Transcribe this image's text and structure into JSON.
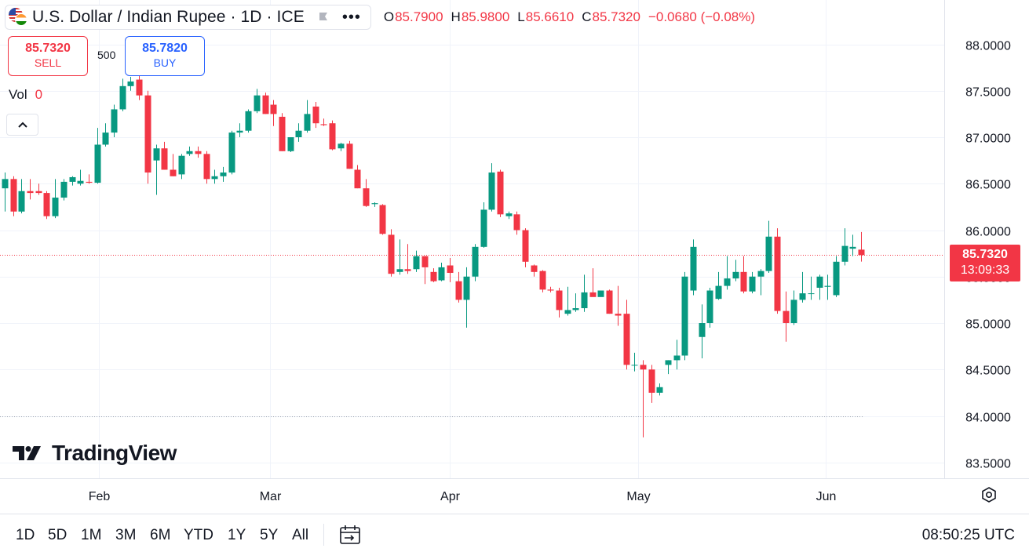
{
  "header": {
    "symbol_title": "U.S. Dollar / Indian Rupee · 1D · ICE",
    "more_icon": "more-dots-icon",
    "ohlc": [
      {
        "key": "O",
        "value": "85.7900"
      },
      {
        "key": "H",
        "value": "85.9800"
      },
      {
        "key": "L",
        "value": "85.6610"
      },
      {
        "key": "C",
        "value": "85.7320"
      }
    ],
    "change": "−0.0680 (−0.08%)"
  },
  "trade": {
    "sell_price": "85.7320",
    "sell_label": "SELL",
    "quantity": "500",
    "buy_price": "85.7820",
    "buy_label": "BUY"
  },
  "volume": {
    "label": "Vol",
    "value": "0"
  },
  "logo": {
    "text": "TradingView"
  },
  "price_badge": {
    "price": "85.7320",
    "countdown": "13:09:33"
  },
  "bottom": {
    "ranges": [
      "1D",
      "5D",
      "1M",
      "3M",
      "6M",
      "YTD",
      "1Y",
      "5Y",
      "All"
    ],
    "clock": "08:50:25 UTC"
  },
  "colors": {
    "up": "#089981",
    "down": "#f23645",
    "accent": "#2962ff"
  },
  "chart_data": {
    "type": "candlestick",
    "y_ticks": [
      "88.0000",
      "87.5000",
      "87.0000",
      "86.5000",
      "86.0000",
      "85.5000",
      "85.0000",
      "84.5000",
      "84.0000",
      "83.5000"
    ],
    "x_ticks": [
      "Feb",
      "Mar",
      "Apr",
      "May",
      "Jun"
    ],
    "ylim": [
      83.3,
      88.25
    ],
    "last_price": 85.732,
    "grid": true,
    "candles": [
      {
        "o": 86.45,
        "h": 86.62,
        "l": 86.2,
        "c": 86.55
      },
      {
        "o": 86.55,
        "h": 86.58,
        "l": 86.15,
        "c": 86.2
      },
      {
        "o": 86.2,
        "h": 86.55,
        "l": 86.18,
        "c": 86.42
      },
      {
        "o": 86.42,
        "h": 86.55,
        "l": 86.33,
        "c": 86.4
      },
      {
        "o": 86.42,
        "h": 86.5,
        "l": 86.38,
        "c": 86.4
      },
      {
        "o": 86.4,
        "h": 86.42,
        "l": 86.12,
        "c": 86.15
      },
      {
        "o": 86.15,
        "h": 86.55,
        "l": 86.13,
        "c": 86.35
      },
      {
        "o": 86.35,
        "h": 86.55,
        "l": 86.32,
        "c": 86.52
      },
      {
        "o": 86.52,
        "h": 86.58,
        "l": 86.48,
        "c": 86.57
      },
      {
        "o": 86.5,
        "h": 86.65,
        "l": 86.48,
        "c": 86.53
      },
      {
        "o": 86.52,
        "h": 86.6,
        "l": 86.5,
        "c": 86.51
      },
      {
        "o": 86.51,
        "h": 87.1,
        "l": 86.5,
        "c": 86.92
      },
      {
        "o": 86.92,
        "h": 87.15,
        "l": 86.9,
        "c": 87.05
      },
      {
        "o": 87.05,
        "h": 87.35,
        "l": 87.0,
        "c": 87.3
      },
      {
        "o": 87.3,
        "h": 87.63,
        "l": 87.28,
        "c": 87.55
      },
      {
        "o": 87.55,
        "h": 87.65,
        "l": 87.5,
        "c": 87.6
      },
      {
        "o": 87.62,
        "h": 87.66,
        "l": 87.4,
        "c": 87.45
      },
      {
        "o": 87.45,
        "h": 87.5,
        "l": 86.5,
        "c": 86.62
      },
      {
        "o": 86.75,
        "h": 86.92,
        "l": 86.38,
        "c": 86.88
      },
      {
        "o": 86.88,
        "h": 86.95,
        "l": 86.65,
        "c": 86.65
      },
      {
        "o": 86.65,
        "h": 86.82,
        "l": 86.58,
        "c": 86.58
      },
      {
        "o": 86.6,
        "h": 86.82,
        "l": 86.55,
        "c": 86.8
      },
      {
        "o": 86.82,
        "h": 86.9,
        "l": 86.8,
        "c": 86.85
      },
      {
        "o": 86.85,
        "h": 86.9,
        "l": 86.78,
        "c": 86.82
      },
      {
        "o": 86.82,
        "h": 86.85,
        "l": 86.5,
        "c": 86.55
      },
      {
        "o": 86.55,
        "h": 86.65,
        "l": 86.5,
        "c": 86.58
      },
      {
        "o": 86.58,
        "h": 86.68,
        "l": 86.52,
        "c": 86.62
      },
      {
        "o": 86.62,
        "h": 87.07,
        "l": 86.6,
        "c": 87.05
      },
      {
        "o": 87.05,
        "h": 87.15,
        "l": 87.0,
        "c": 87.07
      },
      {
        "o": 87.07,
        "h": 87.3,
        "l": 87.05,
        "c": 87.28
      },
      {
        "o": 87.28,
        "h": 87.52,
        "l": 87.26,
        "c": 87.45
      },
      {
        "o": 87.45,
        "h": 87.48,
        "l": 87.25,
        "c": 87.25
      },
      {
        "o": 87.35,
        "h": 87.4,
        "l": 87.12,
        "c": 87.25
      },
      {
        "o": 87.22,
        "h": 87.26,
        "l": 86.85,
        "c": 86.85
      },
      {
        "o": 86.85,
        "h": 87.0,
        "l": 86.84,
        "c": 87.0
      },
      {
        "o": 87.0,
        "h": 87.15,
        "l": 86.95,
        "c": 87.07
      },
      {
        "o": 87.07,
        "h": 87.4,
        "l": 87.05,
        "c": 87.25
      },
      {
        "o": 87.33,
        "h": 87.38,
        "l": 87.1,
        "c": 87.15
      },
      {
        "o": 87.14,
        "h": 87.2,
        "l": 87.12,
        "c": 87.13
      },
      {
        "o": 87.15,
        "h": 87.18,
        "l": 86.86,
        "c": 86.87
      },
      {
        "o": 86.88,
        "h": 86.94,
        "l": 86.85,
        "c": 86.93
      },
      {
        "o": 86.93,
        "h": 86.96,
        "l": 86.66,
        "c": 86.66
      },
      {
        "o": 86.65,
        "h": 86.7,
        "l": 86.45,
        "c": 86.45
      },
      {
        "o": 86.45,
        "h": 86.55,
        "l": 86.25,
        "c": 86.26
      },
      {
        "o": 86.28,
        "h": 86.3,
        "l": 86.25,
        "c": 86.29
      },
      {
        "o": 86.27,
        "h": 86.28,
        "l": 85.95,
        "c": 85.96
      },
      {
        "o": 85.95,
        "h": 86.01,
        "l": 85.5,
        "c": 85.53
      },
      {
        "o": 85.55,
        "h": 85.9,
        "l": 85.52,
        "c": 85.58
      },
      {
        "o": 85.58,
        "h": 85.85,
        "l": 85.53,
        "c": 85.56
      },
      {
        "o": 85.58,
        "h": 85.78,
        "l": 85.55,
        "c": 85.72
      },
      {
        "o": 85.72,
        "h": 85.72,
        "l": 85.42,
        "c": 85.6
      },
      {
        "o": 85.55,
        "h": 85.59,
        "l": 85.44,
        "c": 85.45
      },
      {
        "o": 85.46,
        "h": 85.65,
        "l": 85.45,
        "c": 85.6
      },
      {
        "o": 85.62,
        "h": 85.7,
        "l": 85.44,
        "c": 85.54
      },
      {
        "o": 85.45,
        "h": 85.55,
        "l": 85.22,
        "c": 85.25
      },
      {
        "o": 85.25,
        "h": 85.6,
        "l": 84.95,
        "c": 85.5
      },
      {
        "o": 85.5,
        "h": 85.85,
        "l": 85.45,
        "c": 85.82
      },
      {
        "o": 85.82,
        "h": 86.3,
        "l": 85.81,
        "c": 86.22
      },
      {
        "o": 86.22,
        "h": 86.72,
        "l": 86.2,
        "c": 86.62
      },
      {
        "o": 86.63,
        "h": 86.65,
        "l": 86.14,
        "c": 86.17
      },
      {
        "o": 86.15,
        "h": 86.2,
        "l": 86.12,
        "c": 86.18
      },
      {
        "o": 86.17,
        "h": 86.2,
        "l": 85.95,
        "c": 86.0
      },
      {
        "o": 86.0,
        "h": 86.02,
        "l": 85.6,
        "c": 85.66
      },
      {
        "o": 85.62,
        "h": 85.63,
        "l": 85.5,
        "c": 85.55
      },
      {
        "o": 85.56,
        "h": 85.57,
        "l": 85.33,
        "c": 85.36
      },
      {
        "o": 85.36,
        "h": 85.39,
        "l": 85.33,
        "c": 85.35
      },
      {
        "o": 85.35,
        "h": 85.38,
        "l": 85.06,
        "c": 85.14
      },
      {
        "o": 85.1,
        "h": 85.39,
        "l": 85.08,
        "c": 85.14
      },
      {
        "o": 85.14,
        "h": 85.32,
        "l": 85.12,
        "c": 85.16
      },
      {
        "o": 85.16,
        "h": 85.52,
        "l": 85.12,
        "c": 85.33
      },
      {
        "o": 85.33,
        "h": 85.59,
        "l": 85.3,
        "c": 85.28
      },
      {
        "o": 85.28,
        "h": 85.35,
        "l": 85.3,
        "c": 85.35
      },
      {
        "o": 85.35,
        "h": 85.36,
        "l": 85.1,
        "c": 85.1
      },
      {
        "o": 85.1,
        "h": 85.4,
        "l": 84.97,
        "c": 85.08
      },
      {
        "o": 85.1,
        "h": 85.25,
        "l": 84.5,
        "c": 84.55
      },
      {
        "o": 84.55,
        "h": 84.68,
        "l": 84.48,
        "c": 84.55
      },
      {
        "o": 84.55,
        "h": 84.6,
        "l": 83.77,
        "c": 84.5
      },
      {
        "o": 84.5,
        "h": 84.55,
        "l": 84.14,
        "c": 84.25
      },
      {
        "o": 84.25,
        "h": 84.35,
        "l": 84.22,
        "c": 84.31
      },
      {
        "o": 84.55,
        "h": 84.6,
        "l": 84.45,
        "c": 84.6
      },
      {
        "o": 84.6,
        "h": 84.82,
        "l": 84.5,
        "c": 84.65
      },
      {
        "o": 84.65,
        "h": 85.55,
        "l": 84.6,
        "c": 85.5
      },
      {
        "o": 85.35,
        "h": 85.9,
        "l": 85.3,
        "c": 85.82
      },
      {
        "o": 84.85,
        "h": 85.2,
        "l": 84.62,
        "c": 85.0
      },
      {
        "o": 85.0,
        "h": 85.38,
        "l": 84.95,
        "c": 85.35
      },
      {
        "o": 85.26,
        "h": 85.55,
        "l": 85.25,
        "c": 85.4
      },
      {
        "o": 85.4,
        "h": 85.72,
        "l": 85.36,
        "c": 85.48
      },
      {
        "o": 85.48,
        "h": 85.68,
        "l": 85.45,
        "c": 85.55
      },
      {
        "o": 85.55,
        "h": 85.72,
        "l": 85.32,
        "c": 85.34
      },
      {
        "o": 85.34,
        "h": 85.55,
        "l": 85.32,
        "c": 85.5
      },
      {
        "o": 85.5,
        "h": 85.58,
        "l": 85.3,
        "c": 85.56
      },
      {
        "o": 85.56,
        "h": 86.1,
        "l": 85.54,
        "c": 85.93
      },
      {
        "o": 85.93,
        "h": 86.02,
        "l": 85.1,
        "c": 85.13
      },
      {
        "o": 85.13,
        "h": 85.34,
        "l": 84.8,
        "c": 85.0
      },
      {
        "o": 85.0,
        "h": 85.35,
        "l": 84.98,
        "c": 85.25
      },
      {
        "o": 85.25,
        "h": 85.55,
        "l": 85.22,
        "c": 85.32
      },
      {
        "o": 85.32,
        "h": 85.5,
        "l": 85.25,
        "c": 85.32
      },
      {
        "o": 85.38,
        "h": 85.52,
        "l": 85.25,
        "c": 85.5
      },
      {
        "o": 85.39,
        "h": 85.52,
        "l": 85.25,
        "c": 85.4
      },
      {
        "o": 85.3,
        "h": 85.72,
        "l": 85.28,
        "c": 85.66
      },
      {
        "o": 85.66,
        "h": 86.02,
        "l": 85.62,
        "c": 85.83
      },
      {
        "o": 85.8,
        "h": 85.95,
        "l": 85.72,
        "c": 85.82
      },
      {
        "o": 85.79,
        "h": 85.98,
        "l": 85.661,
        "c": 85.732
      }
    ]
  }
}
